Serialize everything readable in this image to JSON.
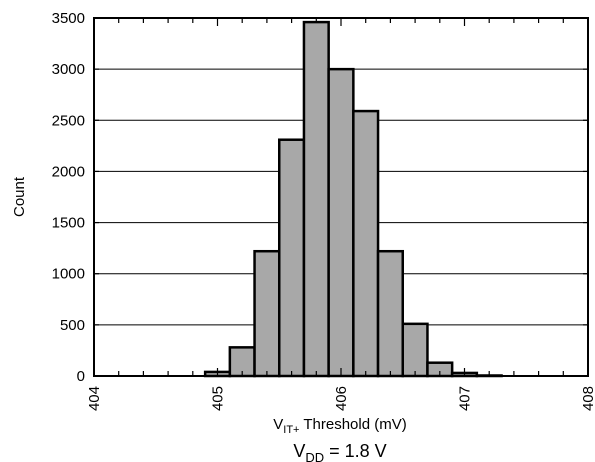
{
  "chart_data": {
    "type": "bar",
    "title": "",
    "xlabel": {
      "main": "V",
      "sub": "IT+",
      "rest": " Threshold (mV)"
    },
    "ylabel": "Count",
    "caption": {
      "main": "V",
      "sub": "DD",
      "rest": " = 1.8 V"
    },
    "xlim": [
      404,
      408
    ],
    "ylim": [
      0,
      3500
    ],
    "x_ticks": [
      "404",
      "405",
      "406",
      "407",
      "408"
    ],
    "y_ticks": [
      "0",
      "500",
      "1000",
      "1500",
      "2000",
      "2500",
      "3000",
      "3500"
    ],
    "grid": {
      "horizontal": true,
      "vertical": false
    },
    "bin_width": 0.2,
    "bins": [
      {
        "start": 404.9,
        "value": 40
      },
      {
        "start": 405.1,
        "value": 280
      },
      {
        "start": 405.3,
        "value": 1220
      },
      {
        "start": 405.5,
        "value": 2310
      },
      {
        "start": 405.7,
        "value": 3460
      },
      {
        "start": 405.9,
        "value": 3000
      },
      {
        "start": 406.1,
        "value": 2590
      },
      {
        "start": 406.3,
        "value": 1220
      },
      {
        "start": 406.5,
        "value": 510
      },
      {
        "start": 406.7,
        "value": 130
      },
      {
        "start": 406.9,
        "value": 30
      },
      {
        "start": 407.1,
        "value": 5
      }
    ],
    "colors": {
      "bar_fill": "#a8a8a8",
      "bar_stroke": "#000000"
    }
  }
}
